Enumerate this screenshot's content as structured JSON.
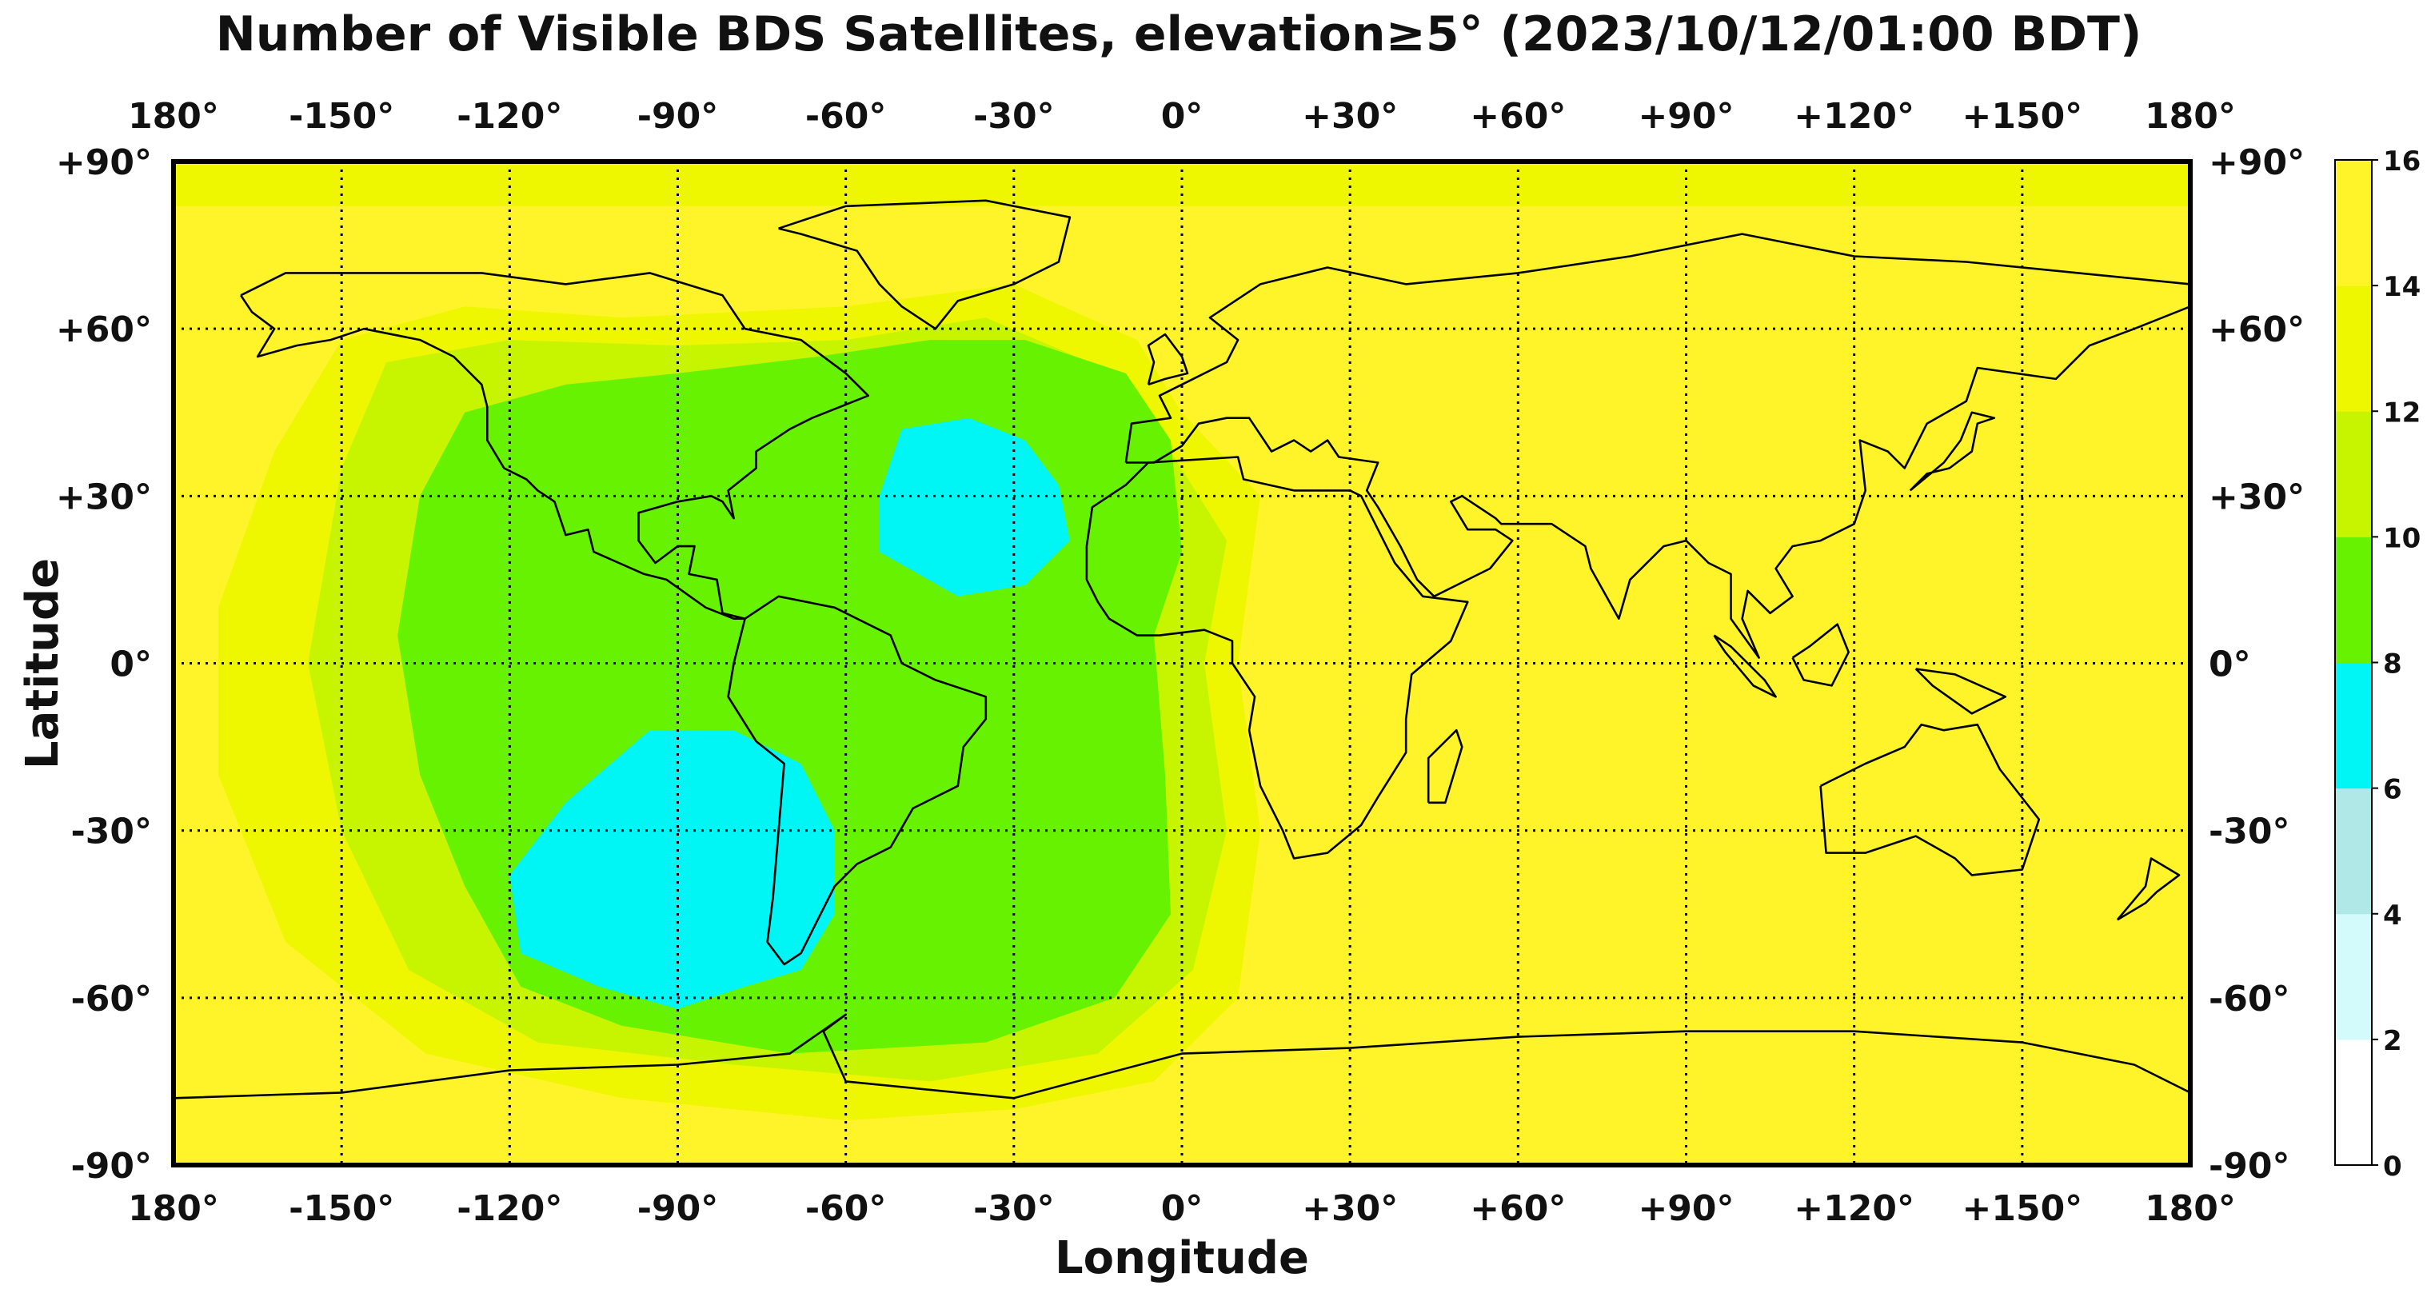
{
  "chart_data": {
    "type": "heatmap",
    "title": "Number of Visible BDS Satellites, elevation≥5° (2023/10/12/01:00 BDT)",
    "xlabel": "Longitude",
    "ylabel": "Latitude",
    "x_ticks": [
      "180°",
      "-150°",
      "-120°",
      "-90°",
      "-60°",
      "-30°",
      "0°",
      "+30°",
      "+60°",
      "+90°",
      "+120°",
      "+150°",
      "180°"
    ],
    "y_ticks": [
      "+90°",
      "+60°",
      "+30°",
      "0°",
      "-30°",
      "-60°",
      "-90°"
    ],
    "xlim": [
      -180,
      180
    ],
    "ylim": [
      -90,
      90
    ],
    "grid": true,
    "colorbar": {
      "ticks": [
        "0",
        "2",
        "4",
        "6",
        "8",
        "10",
        "12",
        "14",
        "16"
      ],
      "levels": [
        0,
        2,
        4,
        6,
        8,
        10,
        12,
        14,
        16
      ],
      "colors": [
        "#ffffff",
        "#d4fbfb",
        "#b0e8e8",
        "#00f5f5",
        "#66f200",
        "#c7f500",
        "#eef700",
        "#fff42a"
      ]
    },
    "regions": [
      {
        "count_range": "14-16",
        "description_lon": [
          -180,
          180
        ],
        "description_lat": [
          -90,
          90
        ]
      },
      {
        "count_range": "12-14",
        "lon": [
          -180,
          180
        ],
        "lat": [
          82,
          90
        ]
      },
      {
        "count_range": "12-14",
        "lon": [
          -175,
          15
        ],
        "lat": [
          -82,
          68
        ]
      },
      {
        "count_range": "10-12",
        "lon": [
          -150,
          10
        ],
        "lat": [
          -75,
          60
        ]
      },
      {
        "count_range": "8-10",
        "lon": [
          -140,
          0
        ],
        "lat": [
          -70,
          55
        ]
      },
      {
        "count_range": "6-8",
        "lon": [
          -54,
          -20
        ],
        "lat": [
          12,
          42
        ]
      },
      {
        "count_range": "6-8",
        "lon": [
          -120,
          -60
        ],
        "lat": [
          -62,
          -10
        ]
      }
    ]
  }
}
